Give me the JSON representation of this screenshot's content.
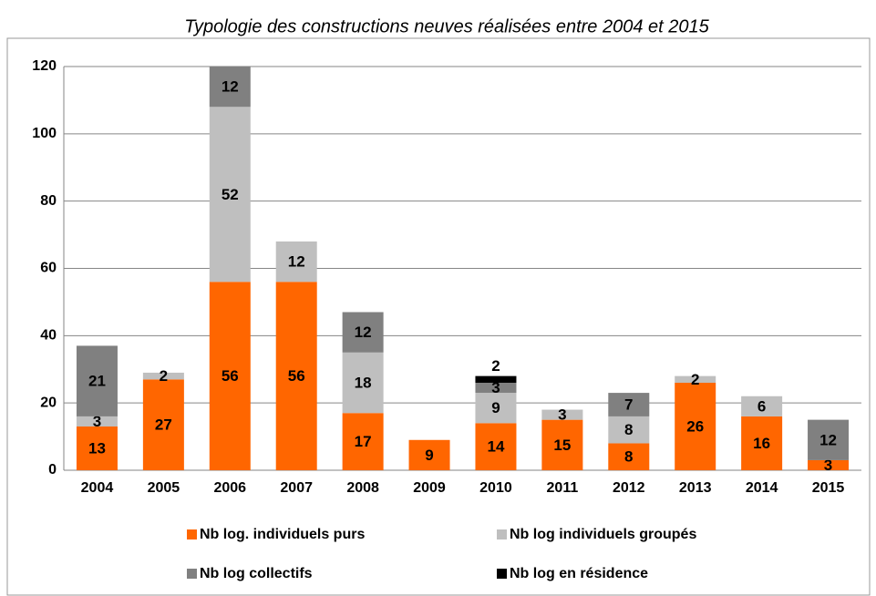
{
  "chart_data": {
    "type": "stacked_bar",
    "title": "Typologie des constructions neuves réalisées entre 2004 et 2015",
    "categories": [
      "2004",
      "2005",
      "2006",
      "2007",
      "2008",
      "2009",
      "2010",
      "2011",
      "2012",
      "2013",
      "2014",
      "2015"
    ],
    "series": [
      {
        "name": "Nb log. individuels purs",
        "color": "#ff6600",
        "values": [
          13,
          27,
          56,
          56,
          17,
          9,
          14,
          15,
          8,
          26,
          16,
          3
        ]
      },
      {
        "name": "Nb log individuels groupés",
        "color": "#bfbfbf",
        "values": [
          3,
          2,
          52,
          12,
          18,
          null,
          9,
          3,
          8,
          2,
          6,
          null
        ]
      },
      {
        "name": "Nb log collectifs",
        "color": "#808080",
        "values": [
          21,
          null,
          12,
          null,
          12,
          null,
          3,
          null,
          7,
          null,
          null,
          12
        ]
      },
      {
        "name": "Nb log en résidence",
        "color": "#000000",
        "values": [
          null,
          null,
          null,
          null,
          null,
          null,
          2,
          null,
          null,
          null,
          null,
          null
        ]
      }
    ],
    "ylim": [
      0,
      120
    ],
    "yticks": [
      0,
      20,
      40,
      60,
      80,
      100,
      120
    ],
    "grid": true
  }
}
